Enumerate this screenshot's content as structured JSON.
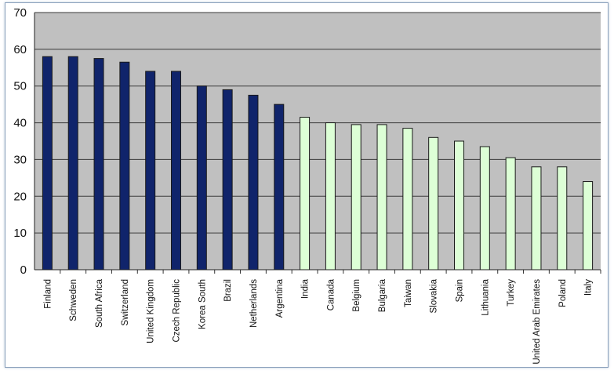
{
  "chart_data": {
    "type": "bar",
    "title": "",
    "xlabel": "",
    "ylabel": "",
    "ylim": [
      0,
      70
    ],
    "y_ticks": [
      "0",
      "10",
      "20",
      "30",
      "40",
      "50",
      "60",
      "70"
    ],
    "grid": true,
    "legend": "none",
    "colors": {
      "plot_background": "#c0c0c0",
      "gridline": "#3a3a3a",
      "bar_group_1": "#10246b",
      "bar_group_2": "#ddffd6",
      "bar_edge": "#1a1a1a"
    },
    "categories": [
      "Finland",
      "Schweden",
      "South Africa",
      "Switzerland",
      "United Kingdom",
      "Czech Republic",
      "Korea South",
      "Brazil",
      "Netherlands",
      "Argentina",
      "India",
      "Canada",
      "Belgium",
      "Bulgaria",
      "Taiwan",
      "Slovakia",
      "Spain",
      "Lithuania",
      "Turkey",
      "United Arab Emirates",
      "Poland",
      "Italy"
    ],
    "values": [
      58,
      58,
      57.5,
      56.5,
      54,
      54,
      50,
      49,
      47.5,
      45,
      41.5,
      40,
      39.5,
      39.5,
      38.5,
      36,
      35,
      33.5,
      30.5,
      28,
      28,
      24
    ],
    "bar_groups": [
      1,
      1,
      1,
      1,
      1,
      1,
      1,
      1,
      1,
      1,
      2,
      2,
      2,
      2,
      2,
      2,
      2,
      2,
      2,
      2,
      2,
      2
    ]
  }
}
